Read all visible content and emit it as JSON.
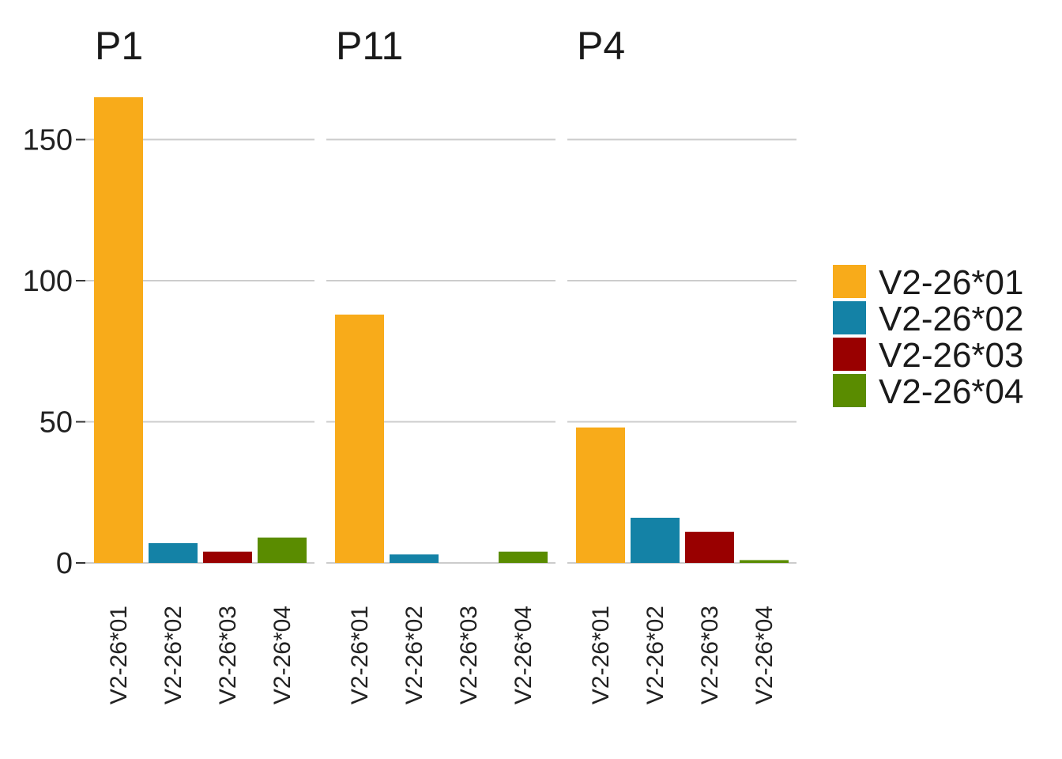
{
  "chart_data": {
    "type": "bar",
    "categories": [
      "V2-26*01",
      "V2-26*02",
      "V2-26*03",
      "V2-26*04"
    ],
    "yticks": [
      0,
      50,
      100,
      150
    ],
    "ylim": [
      0,
      165
    ],
    "grid": true,
    "legend_placement": "right",
    "colors": [
      "#F8AB1A",
      "#1482A6",
      "#990000",
      "#5A8C00"
    ],
    "panels": [
      {
        "title": "P1",
        "values": [
          165,
          7,
          4,
          9
        ]
      },
      {
        "title": "P11",
        "values": [
          88,
          3,
          0,
          4
        ]
      },
      {
        "title": "P4",
        "values": [
          48,
          16,
          11,
          1
        ]
      }
    ],
    "legend": [
      "V2-26*01",
      "V2-26*02",
      "V2-26*03",
      "V2-26*04"
    ]
  }
}
